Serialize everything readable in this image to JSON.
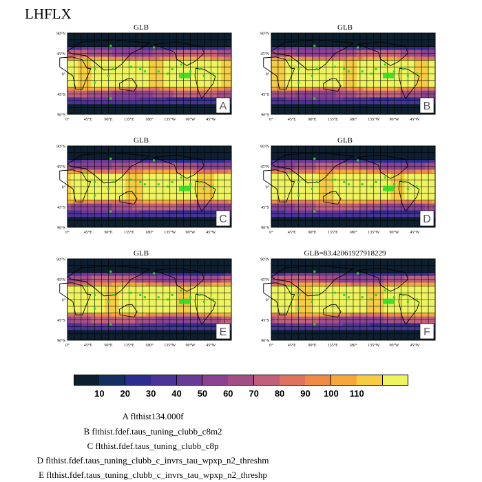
{
  "page_title": "LHFLX",
  "colormap": [
    "#0d1f2e",
    "#14305f",
    "#2c2e8f",
    "#4a3396",
    "#6a3a98",
    "#8a4290",
    "#a24f86",
    "#c0607a",
    "#de735f",
    "#f08a45",
    "#f7a83b",
    "#f6cc42",
    "#eef45e"
  ],
  "colorbar_ticks": [
    "10",
    "20",
    "30",
    "40",
    "50",
    "60",
    "70",
    "80",
    "90",
    "100",
    "110"
  ],
  "lat_labels": [
    "90°N",
    "45°N",
    "0°",
    "45°S",
    "90°S"
  ],
  "lon_labels": [
    "0°",
    "45°E",
    "90°E",
    "135°E",
    "180°",
    "135°W",
    "90°W",
    "45°W"
  ],
  "panels": [
    {
      "title": "GLB",
      "letter": "A"
    },
    {
      "title": "GLB",
      "letter": "B"
    },
    {
      "title": "GLB",
      "letter": "C"
    },
    {
      "title": "GLB",
      "letter": "D"
    },
    {
      "title": "GLB",
      "letter": "E"
    },
    {
      "title": "GLB=83.42061927918229",
      "letter": "F"
    }
  ],
  "legend": [
    "A  flthist134.000f",
    "B  flthist.fdef.taus_tuning_clubb_c8m2",
    "C  flthist.fdef.taus_tuning_clubb_c8p",
    "D  flthist.fdef.taus_tuning_clubb_c_invrs_tau_wpxp_n2_threshm",
    "E  flthist.fdef.taus_tuning_clubb_c_invrs_tau_wpxp_n2_threshp"
  ],
  "marker_color": "#22dd22"
}
